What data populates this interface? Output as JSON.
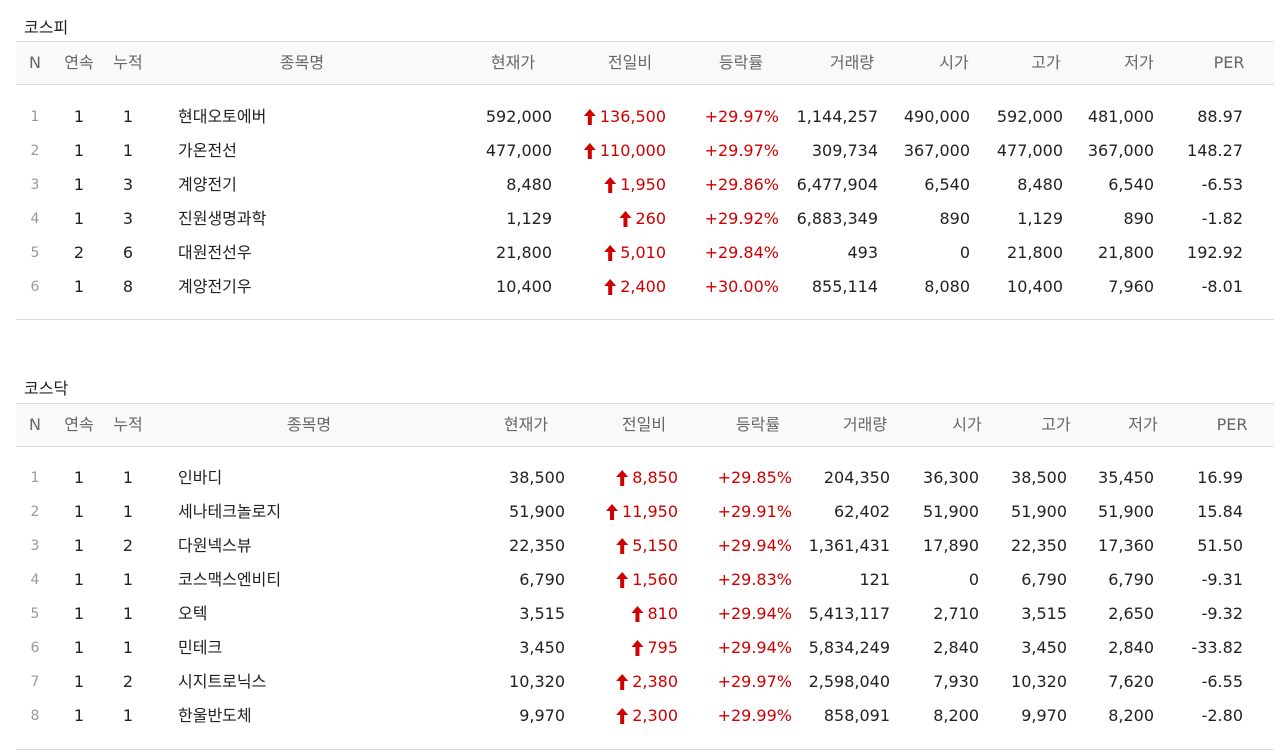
{
  "headers": {
    "n": "N",
    "streak": "연속",
    "cum": "누적",
    "name": "종목명",
    "price": "현재가",
    "change": "전일비",
    "rate": "등락률",
    "volume": "거래량",
    "open": "시가",
    "high": "고가",
    "low": "저가",
    "per": "PER"
  },
  "colors": {
    "up": "#d00000",
    "header_bg": "#f9f9f9",
    "border": "#dcdcdc"
  },
  "change_icon": "up-arrow-icon",
  "kospi": {
    "title": "코스피",
    "rows": [
      {
        "n": "1",
        "streak": "1",
        "cum": "1",
        "name": "현대오토에버",
        "price": "592,000",
        "change": "136,500",
        "rate": "+29.97%",
        "volume": "1,144,257",
        "open": "490,000",
        "high": "592,000",
        "low": "481,000",
        "per": "88.97"
      },
      {
        "n": "2",
        "streak": "1",
        "cum": "1",
        "name": "가온전선",
        "price": "477,000",
        "change": "110,000",
        "rate": "+29.97%",
        "volume": "309,734",
        "open": "367,000",
        "high": "477,000",
        "low": "367,000",
        "per": "148.27"
      },
      {
        "n": "3",
        "streak": "1",
        "cum": "3",
        "name": "계양전기",
        "price": "8,480",
        "change": "1,950",
        "rate": "+29.86%",
        "volume": "6,477,904",
        "open": "6,540",
        "high": "8,480",
        "low": "6,540",
        "per": "-6.53"
      },
      {
        "n": "4",
        "streak": "1",
        "cum": "3",
        "name": "진원생명과학",
        "price": "1,129",
        "change": "260",
        "rate": "+29.92%",
        "volume": "6,883,349",
        "open": "890",
        "high": "1,129",
        "low": "890",
        "per": "-1.82"
      },
      {
        "n": "5",
        "streak": "2",
        "cum": "6",
        "name": "대원전선우",
        "price": "21,800",
        "change": "5,010",
        "rate": "+29.84%",
        "volume": "493",
        "open": "0",
        "high": "21,800",
        "low": "21,800",
        "per": "192.92"
      },
      {
        "n": "6",
        "streak": "1",
        "cum": "8",
        "name": "계양전기우",
        "price": "10,400",
        "change": "2,400",
        "rate": "+30.00%",
        "volume": "855,114",
        "open": "8,080",
        "high": "10,400",
        "low": "7,960",
        "per": "-8.01"
      }
    ]
  },
  "kosdaq": {
    "title": "코스닥",
    "rows": [
      {
        "n": "1",
        "streak": "1",
        "cum": "1",
        "name": "인바디",
        "price": "38,500",
        "change": "8,850",
        "rate": "+29.85%",
        "volume": "204,350",
        "open": "36,300",
        "high": "38,500",
        "low": "35,450",
        "per": "16.99"
      },
      {
        "n": "2",
        "streak": "1",
        "cum": "1",
        "name": "세나테크놀로지",
        "price": "51,900",
        "change": "11,950",
        "rate": "+29.91%",
        "volume": "62,402",
        "open": "51,900",
        "high": "51,900",
        "low": "51,900",
        "per": "15.84"
      },
      {
        "n": "3",
        "streak": "1",
        "cum": "2",
        "name": "다원넥스뷰",
        "price": "22,350",
        "change": "5,150",
        "rate": "+29.94%",
        "volume": "1,361,431",
        "open": "17,890",
        "high": "22,350",
        "low": "17,360",
        "per": "51.50"
      },
      {
        "n": "4",
        "streak": "1",
        "cum": "1",
        "name": "코스맥스엔비티",
        "price": "6,790",
        "change": "1,560",
        "rate": "+29.83%",
        "volume": "121",
        "open": "0",
        "high": "6,790",
        "low": "6,790",
        "per": "-9.31"
      },
      {
        "n": "5",
        "streak": "1",
        "cum": "1",
        "name": "오텍",
        "price": "3,515",
        "change": "810",
        "rate": "+29.94%",
        "volume": "5,413,117",
        "open": "2,710",
        "high": "3,515",
        "low": "2,650",
        "per": "-9.32"
      },
      {
        "n": "6",
        "streak": "1",
        "cum": "1",
        "name": "민테크",
        "price": "3,450",
        "change": "795",
        "rate": "+29.94%",
        "volume": "5,834,249",
        "open": "2,840",
        "high": "3,450",
        "low": "2,840",
        "per": "-33.82"
      },
      {
        "n": "7",
        "streak": "1",
        "cum": "2",
        "name": "시지트로닉스",
        "price": "10,320",
        "change": "2,380",
        "rate": "+29.97%",
        "volume": "2,598,040",
        "open": "7,930",
        "high": "10,320",
        "low": "7,620",
        "per": "-6.55"
      },
      {
        "n": "8",
        "streak": "1",
        "cum": "1",
        "name": "한울반도체",
        "price": "9,970",
        "change": "2,300",
        "rate": "+29.99%",
        "volume": "858,091",
        "open": "8,200",
        "high": "9,970",
        "low": "8,200",
        "per": "-2.80"
      }
    ]
  }
}
